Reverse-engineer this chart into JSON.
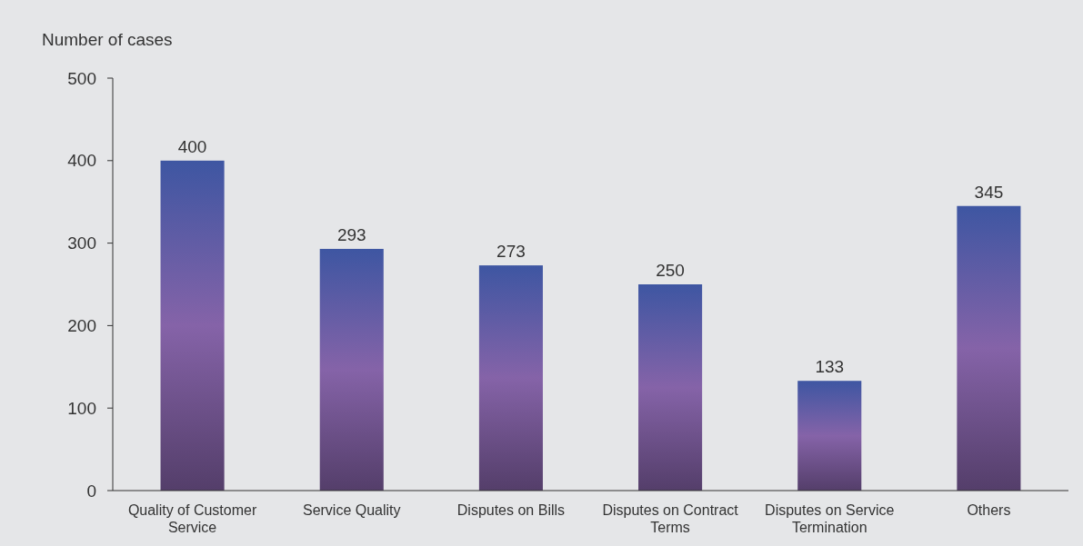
{
  "chart_data": {
    "type": "bar",
    "ylabel": "Number of cases",
    "categories": [
      "Quality of Customer Service",
      "Service Quality",
      "Disputes on Bills",
      "Disputes on Contract Terms",
      "Disputes on Service Termination",
      "Others"
    ],
    "values": [
      400,
      293,
      273,
      250,
      133,
      345
    ],
    "color": "#8563a8",
    "ylim": [
      0,
      500
    ],
    "yticks": [
      0,
      100,
      200,
      300,
      400,
      500
    ],
    "data_labels": true,
    "grid": false
  }
}
